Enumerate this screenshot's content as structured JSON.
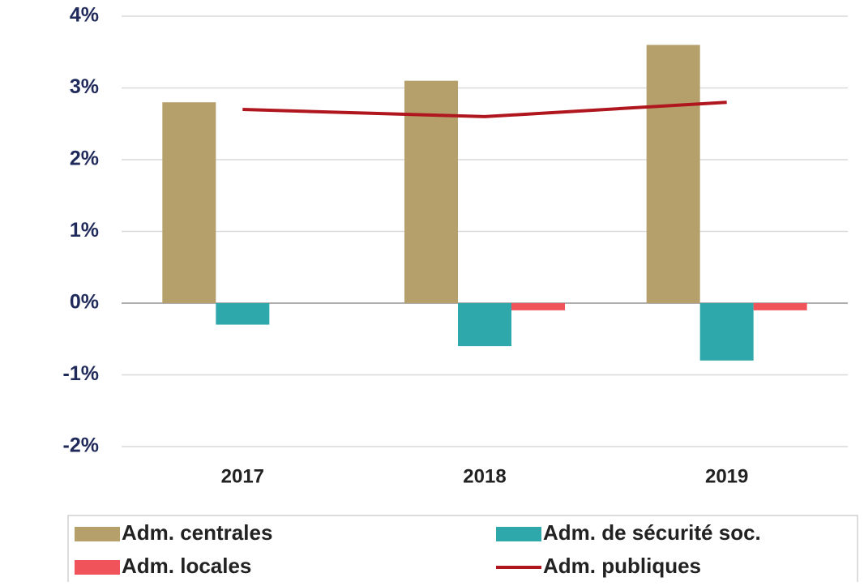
{
  "chart_data": {
    "type": "bar",
    "categories": [
      "2017",
      "2018",
      "2019"
    ],
    "series": [
      {
        "name": "Adm. centrales",
        "color": "#b5a06b",
        "values": [
          2.8,
          3.1,
          3.6
        ]
      },
      {
        "name": "Adm. de sécurité soc.",
        "color": "#2fa8ac",
        "values": [
          -0.3,
          -0.6,
          -0.8
        ]
      },
      {
        "name": "Adm. locales",
        "color": "#f0545a",
        "values": [
          0,
          -0.1,
          -0.1
        ]
      },
      {
        "name": "Adm. publiques",
        "color": "#b0161e",
        "type": "line",
        "values": [
          2.7,
          2.6,
          2.8
        ]
      }
    ],
    "ylim": [
      -2,
      4
    ],
    "yticks": [
      {
        "value": -2,
        "label": "-2%"
      },
      {
        "value": -1,
        "label": "-1%"
      },
      {
        "value": 0,
        "label": "0%"
      },
      {
        "value": 1,
        "label": "1%"
      },
      {
        "value": 2,
        "label": "2%"
      },
      {
        "value": 3,
        "label": "3%"
      },
      {
        "value": 4,
        "label": "4%"
      }
    ],
    "grid": true,
    "legend": "bottom"
  }
}
